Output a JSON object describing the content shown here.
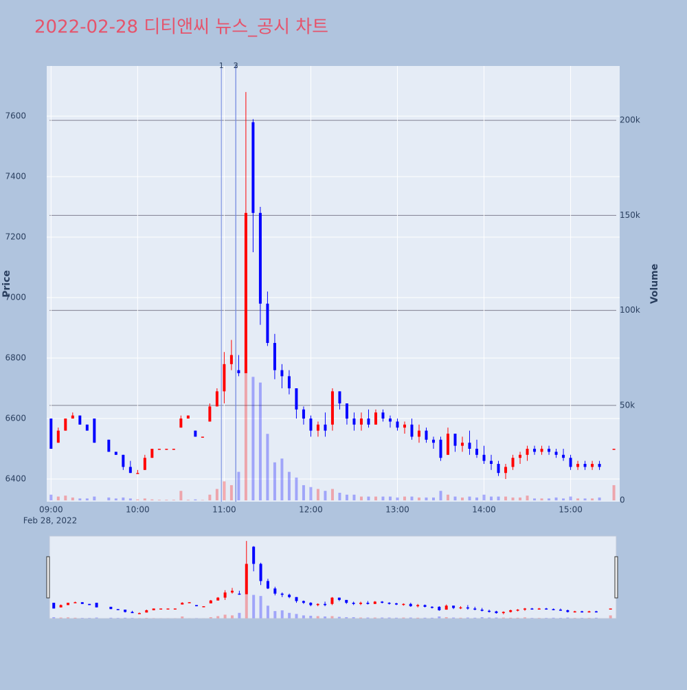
{
  "chart_data": {
    "type": "candlestick",
    "title": "2022-02-28 디티앤씨 뉴스_공시 차트",
    "ylabel": "Price",
    "y2label": "Volume",
    "x_date_label": "Feb 28, 2022",
    "increasing_color": "#ff0000",
    "decreasing_color": "#0000ff",
    "xlim": [
      "2022-02-28 08:57",
      "2022-02-28 15:34"
    ],
    "xticks": [
      {
        "value": "2022-02-28 09:00",
        "label": "09:00"
      },
      {
        "value": "2022-02-28 10:00",
        "label": "10:00"
      },
      {
        "value": "2022-02-28 11:00",
        "label": "11:00"
      },
      {
        "value": "2022-02-28 12:00",
        "label": "12:00"
      },
      {
        "value": "2022-02-28 13:00",
        "label": "13:00"
      },
      {
        "value": "2022-02-28 14:00",
        "label": "14:00"
      },
      {
        "value": "2022-02-28 15:00",
        "label": "15:00"
      }
    ],
    "ylim": [
      6325,
      7766
    ],
    "yticks": [
      6400,
      6600,
      6800,
      7000,
      7200,
      7400,
      7600
    ],
    "y2lim": [
      -700,
      228600
    ],
    "y2ticks": [
      {
        "value": 0,
        "label": "0"
      },
      {
        "value": 50000,
        "label": "50k"
      },
      {
        "value": 100000,
        "label": "100k"
      },
      {
        "value": 150000,
        "label": "150k"
      },
      {
        "value": 200000,
        "label": "200k"
      }
    ],
    "events": [
      {
        "x": "2022-02-28 10:58",
        "label": "1"
      },
      {
        "x": "2022-02-28 11:08",
        "label": "2"
      },
      {
        "x": "2022-02-28 11:08",
        "label": "3"
      }
    ],
    "x": [
      "2022-02-28 09:00",
      "2022-02-28 09:05",
      "2022-02-28 09:10",
      "2022-02-28 09:15",
      "2022-02-28 09:20",
      "2022-02-28 09:25",
      "2022-02-28 09:30",
      "2022-02-28 09:40",
      "2022-02-28 09:45",
      "2022-02-28 09:50",
      "2022-02-28 09:55",
      "2022-02-28 10:00",
      "2022-02-28 10:05",
      "2022-02-28 10:10",
      "2022-02-28 10:15",
      "2022-02-28 10:20",
      "2022-02-28 10:25",
      "2022-02-28 10:30",
      "2022-02-28 10:35",
      "2022-02-28 10:40",
      "2022-02-28 10:45",
      "2022-02-28 10:50",
      "2022-02-28 10:55",
      "2022-02-28 11:00",
      "2022-02-28 11:05",
      "2022-02-28 11:10",
      "2022-02-28 11:15",
      "2022-02-28 11:20",
      "2022-02-28 11:25",
      "2022-02-28 11:30",
      "2022-02-28 11:35",
      "2022-02-28 11:40",
      "2022-02-28 11:45",
      "2022-02-28 11:50",
      "2022-02-28 11:55",
      "2022-02-28 12:00",
      "2022-02-28 12:05",
      "2022-02-28 12:10",
      "2022-02-28 12:15",
      "2022-02-28 12:20",
      "2022-02-28 12:25",
      "2022-02-28 12:30",
      "2022-02-28 12:35",
      "2022-02-28 12:40",
      "2022-02-28 12:45",
      "2022-02-28 12:50",
      "2022-02-28 12:55",
      "2022-02-28 13:00",
      "2022-02-28 13:05",
      "2022-02-28 13:10",
      "2022-02-28 13:15",
      "2022-02-28 13:20",
      "2022-02-28 13:25",
      "2022-02-28 13:30",
      "2022-02-28 13:35",
      "2022-02-28 13:40",
      "2022-02-28 13:45",
      "2022-02-28 13:50",
      "2022-02-28 13:55",
      "2022-02-28 14:00",
      "2022-02-28 14:05",
      "2022-02-28 14:10",
      "2022-02-28 14:15",
      "2022-02-28 14:20",
      "2022-02-28 14:25",
      "2022-02-28 14:30",
      "2022-02-28 14:35",
      "2022-02-28 14:40",
      "2022-02-28 14:45",
      "2022-02-28 14:50",
      "2022-02-28 14:55",
      "2022-02-28 15:00",
      "2022-02-28 15:05",
      "2022-02-28 15:10",
      "2022-02-28 15:15",
      "2022-02-28 15:20",
      "2022-02-28 15:30"
    ],
    "open": [
      6600,
      6520,
      6560,
      6600,
      6610,
      6580,
      6600,
      6530,
      6490,
      6480,
      6440,
      6420,
      6430,
      6470,
      6500,
      6500,
      6500,
      6570,
      6600,
      6560,
      6540,
      6590,
      6640,
      6690,
      6780,
      6760,
      6750,
      7580,
      7280,
      6980,
      6850,
      6760,
      6740,
      6700,
      6630,
      6600,
      6560,
      6580,
      6580,
      6690,
      6650,
      6600,
      6580,
      6600,
      6580,
      6620,
      6600,
      6590,
      6570,
      6580,
      6540,
      6560,
      6530,
      6530,
      6480,
      6550,
      6510,
      6520,
      6500,
      6480,
      6460,
      6450,
      6420,
      6440,
      6470,
      6480,
      6500,
      6490,
      6500,
      6490,
      6480,
      6470,
      6440,
      6450,
      6440,
      6450,
      6500
    ],
    "high": [
      6600,
      6570,
      6600,
      6620,
      6610,
      6580,
      6600,
      6530,
      6490,
      6480,
      6460,
      6430,
      6480,
      6500,
      6500,
      6500,
      6500,
      6610,
      6610,
      6560,
      6540,
      6650,
      6700,
      6820,
      6860,
      6810,
      7680,
      7590,
      7300,
      7020,
      6880,
      6780,
      6760,
      6700,
      6640,
      6610,
      6590,
      6620,
      6700,
      6690,
      6650,
      6620,
      6620,
      6630,
      6630,
      6630,
      6610,
      6600,
      6590,
      6600,
      6580,
      6570,
      6540,
      6540,
      6570,
      6550,
      6540,
      6560,
      6530,
      6510,
      6480,
      6460,
      6450,
      6480,
      6490,
      6510,
      6510,
      6510,
      6510,
      6500,
      6500,
      6480,
      6460,
      6460,
      6460,
      6460,
      6500
    ],
    "low": [
      6500,
      6520,
      6560,
      6600,
      6580,
      6560,
      6520,
      6490,
      6480,
      6430,
      6420,
      6420,
      6430,
      6470,
      6500,
      6500,
      6500,
      6570,
      6600,
      6540,
      6540,
      6590,
      6640,
      6650,
      6760,
      6740,
      6750,
      7150,
      6910,
      6840,
      6730,
      6700,
      6680,
      6600,
      6580,
      6540,
      6540,
      6540,
      6560,
      6630,
      6580,
      6560,
      6560,
      6570,
      6580,
      6590,
      6570,
      6560,
      6550,
      6530,
      6520,
      6520,
      6500,
      6460,
      6480,
      6490,
      6490,
      6480,
      6470,
      6450,
      6430,
      6410,
      6400,
      6430,
      6450,
      6460,
      6480,
      6480,
      6480,
      6470,
      6460,
      6430,
      6430,
      6430,
      6430,
      6430,
      6500
    ],
    "close": [
      6500,
      6560,
      6600,
      6610,
      6580,
      6560,
      6520,
      6490,
      6480,
      6440,
      6420,
      6420,
      6470,
      6500,
      6500,
      6500,
      6500,
      6600,
      6610,
      6540,
      6540,
      6640,
      6690,
      6780,
      6810,
      6750,
      7280,
      7280,
      6980,
      6850,
      6760,
      6740,
      6700,
      6630,
      6600,
      6560,
      6580,
      6560,
      6690,
      6650,
      6600,
      6580,
      6600,
      6580,
      6620,
      6600,
      6590,
      6570,
      6580,
      6540,
      6560,
      6530,
      6520,
      6470,
      6550,
      6510,
      6520,
      6500,
      6480,
      6460,
      6450,
      6420,
      6440,
      6470,
      6480,
      6500,
      6490,
      6500,
      6490,
      6480,
      6470,
      6440,
      6450,
      6440,
      6450,
      6440,
      6500
    ],
    "volume": [
      3000,
      2000,
      2500,
      1500,
      1000,
      1000,
      2000,
      1500,
      1000,
      1500,
      1000,
      500,
      1000,
      500,
      300,
      300,
      300,
      5000,
      300,
      500,
      200,
      3000,
      6000,
      10000,
      8000,
      15000,
      68000,
      65000,
      62000,
      35000,
      20000,
      22000,
      15000,
      12000,
      8000,
      7000,
      6000,
      5000,
      6000,
      4000,
      3000,
      3000,
      2000,
      2000,
      2000,
      2000,
      2000,
      1500,
      2000,
      2000,
      1500,
      1500,
      1500,
      5000,
      3000,
      2000,
      1500,
      2000,
      1500,
      3000,
      2000,
      2000,
      2000,
      1500,
      1500,
      2500,
      1000,
      1000,
      1000,
      1500,
      1000,
      2000,
      1000,
      1000,
      1000,
      1500,
      8000
    ]
  }
}
